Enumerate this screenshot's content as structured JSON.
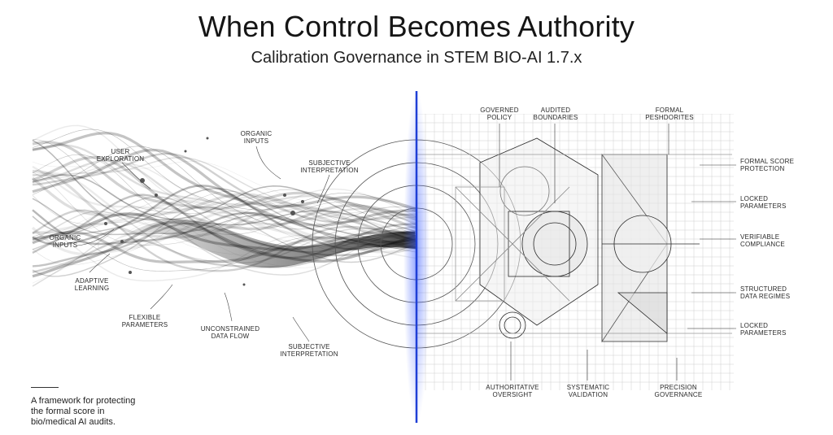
{
  "title": "When Control Becomes Authority",
  "subtitle": "Calibration Governance in STEM BIO-AI 1.7.x",
  "left_labels": {
    "user_exploration": "USER\nEXPLORATION",
    "organic_inputs_top": "ORGANIC\nINPUTS",
    "subjective_interpretation_top": "SUBJECTIVE\nINTERPRETATION",
    "organic_inputs_left": "ORGANIC\nINPUTS",
    "adaptive_learning": "ADAPTIVE\nLEARNING",
    "flexible_parameters": "FLEXIBLE\nPARAMETERS",
    "unconstrained_data_flow": "UNCONSTRAINED\nDATA FLOW",
    "subjective_interpretation_bottom": "SUBJECTIVE\nINTERPRETATION"
  },
  "right_top_labels": {
    "governed_policy": "GOVERNED\nPOLICY",
    "audited_boundaries": "AUDITED\nBOUNDARIES",
    "formal_peshdorites": "FORMAL\nPESHDORITES"
  },
  "right_side_labels": {
    "formal_score_protection": "FORMAL SCORE\nPROTECTION",
    "locked_parameters_1": "LOCKED\nPARAMETERS",
    "verifiable_compliance": "VERIFIABLE\nCOMPLIANCE",
    "structured_data_regimes": "STRUCTURED\nDATA REGIMES",
    "locked_parameters_2": "LOCKED\nPARAMETERS"
  },
  "right_bottom_labels": {
    "authoritative_oversight": "AUTHORITATIVE\nOVERSIGHT",
    "systematic_validation": "SYSTEMATIC\nVALIDATION",
    "precision_governance": "PRECISION\nGOVERNANCE"
  },
  "footer": "A framework for protecting\nthe formal score in\nbio/medical AI audits.",
  "colors": {
    "divider": "#1f3fd6",
    "ink": "#1a1a1a",
    "grid": "#c9c9c9"
  }
}
